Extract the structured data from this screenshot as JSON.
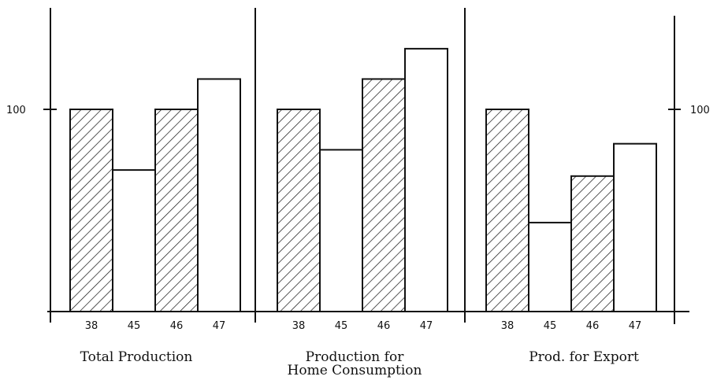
{
  "chart_data": {
    "type": "bar",
    "y_tick_label": "100",
    "ylim": [
      0,
      155
    ],
    "gridlines": false,
    "colors": {
      "ink": "#111111",
      "fill": "#ffffff"
    },
    "patterns": {
      "38": "hatched",
      "45": "plain",
      "46": "hatched",
      "47": "plain"
    },
    "groups": [
      {
        "label_lines": [
          "Total Production"
        ],
        "categories": [
          "38",
          "45",
          "46",
          "47"
        ],
        "values": [
          100,
          70,
          100,
          115
        ]
      },
      {
        "label_lines": [
          "Production for",
          "Home Consumption"
        ],
        "categories": [
          "38",
          "45",
          "46",
          "47"
        ],
        "values": [
          100,
          80,
          115,
          130
        ]
      },
      {
        "label_lines": [
          "Prod. for Export"
        ],
        "categories": [
          "38",
          "45",
          "46",
          "47"
        ],
        "values": [
          100,
          44,
          67,
          83
        ]
      }
    ]
  }
}
